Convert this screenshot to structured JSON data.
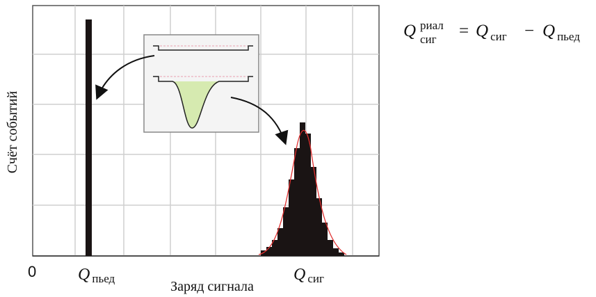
{
  "axis": {
    "origin": "0",
    "x_label": "Заряд сигнала",
    "y_label": "Счёт событий"
  },
  "markers": [
    {
      "symbol": "Q",
      "subscript": "пьед"
    },
    {
      "symbol": "Q",
      "subscript": "сиг"
    }
  ],
  "formula": {
    "lhs": {
      "symbol": "Q",
      "superscript": "риал",
      "subscript": "сиг"
    },
    "equals": "=",
    "term1": {
      "symbol": "Q",
      "subscript": "сиг"
    },
    "minus": "−",
    "term2": {
      "symbol": "Q",
      "subscript": "пьед"
    }
  }
}
